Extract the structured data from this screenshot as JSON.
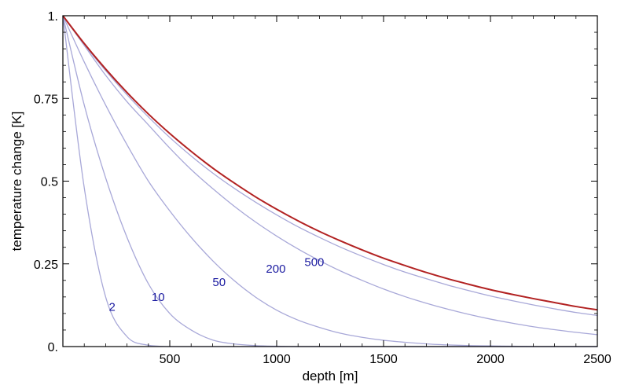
{
  "chart_data": {
    "type": "line",
    "title": "",
    "xlabel": "depth [m]",
    "ylabel": "temperature change [K]",
    "xlim": [
      0,
      2500
    ],
    "ylim": [
      0,
      1
    ],
    "x_ticks": [
      500,
      1000,
      1500,
      2000,
      2500
    ],
    "x_tick_labels": [
      "500",
      "1000",
      "1500",
      "2000",
      "2500"
    ],
    "y_ticks": [
      0,
      0.25,
      0.5,
      0.75,
      1
    ],
    "y_tick_labels": [
      "0.",
      "0.25",
      "0.5",
      "0.75",
      "1."
    ],
    "grid": false,
    "x": [
      0,
      100,
      200,
      300,
      400,
      500,
      600,
      700,
      800,
      900,
      1000,
      1100,
      1200,
      1300,
      1400,
      1500,
      1600,
      1700,
      1800,
      1900,
      2000,
      2100,
      2200,
      2300,
      2400,
      2500
    ],
    "series": [
      {
        "name": "2",
        "label_at": [
          215,
          0.12
        ],
        "color": "#a8a8d8",
        "values": [
          1.0,
          0.48,
          0.15,
          0.03,
          0.004,
          0.0,
          0.0,
          0.0,
          0.0,
          0.0,
          0.0,
          0.0,
          0.0,
          0.0,
          0.0,
          0.0,
          0.0,
          0.0,
          0.0,
          0.0,
          0.0,
          0.0,
          0.0,
          0.0,
          0.0,
          0.0
        ]
      },
      {
        "name": "10",
        "label_at": [
          415,
          0.15
        ],
        "color": "#a8a8d8",
        "values": [
          1.0,
          0.73,
          0.51,
          0.33,
          0.19,
          0.1,
          0.05,
          0.02,
          0.008,
          0.003,
          0.001,
          0.0,
          0.0,
          0.0,
          0.0,
          0.0,
          0.0,
          0.0,
          0.0,
          0.0,
          0.0,
          0.0,
          0.0,
          0.0,
          0.0,
          0.0
        ]
      },
      {
        "name": "50",
        "label_at": [
          700,
          0.195
        ],
        "color": "#a8a8d8",
        "values": [
          1.0,
          0.86,
          0.73,
          0.61,
          0.5,
          0.41,
          0.33,
          0.26,
          0.2,
          0.15,
          0.11,
          0.08,
          0.058,
          0.04,
          0.028,
          0.019,
          0.013,
          0.008,
          0.005,
          0.003,
          0.002,
          0.001,
          0.0,
          0.0,
          0.0,
          0.0
        ]
      },
      {
        "name": "200",
        "label_at": [
          950,
          0.235
        ],
        "color": "#a8a8d8",
        "values": [
          1.0,
          0.91,
          0.82,
          0.74,
          0.67,
          0.6,
          0.535,
          0.478,
          0.425,
          0.377,
          0.334,
          0.295,
          0.26,
          0.228,
          0.2,
          0.174,
          0.151,
          0.131,
          0.113,
          0.097,
          0.083,
          0.071,
          0.06,
          0.051,
          0.043,
          0.036
        ]
      },
      {
        "name": "500",
        "label_at": [
          1130,
          0.255
        ],
        "color": "#a8a8d8",
        "values": [
          1.0,
          0.913,
          0.834,
          0.761,
          0.694,
          0.632,
          0.576,
          0.525,
          0.479,
          0.437,
          0.398,
          0.362,
          0.33,
          0.3,
          0.273,
          0.248,
          0.225,
          0.205,
          0.186,
          0.169,
          0.153,
          0.139,
          0.126,
          0.114,
          0.103,
          0.094
        ]
      },
      {
        "name": "",
        "color": "#b22222",
        "values": [
          1.0,
          0.916,
          0.839,
          0.768,
          0.703,
          0.644,
          0.59,
          0.54,
          0.495,
          0.453,
          0.415,
          0.38,
          0.348,
          0.319,
          0.292,
          0.267,
          0.245,
          0.224,
          0.205,
          0.188,
          0.172,
          0.158,
          0.145,
          0.133,
          0.121,
          0.111
        ]
      }
    ]
  }
}
